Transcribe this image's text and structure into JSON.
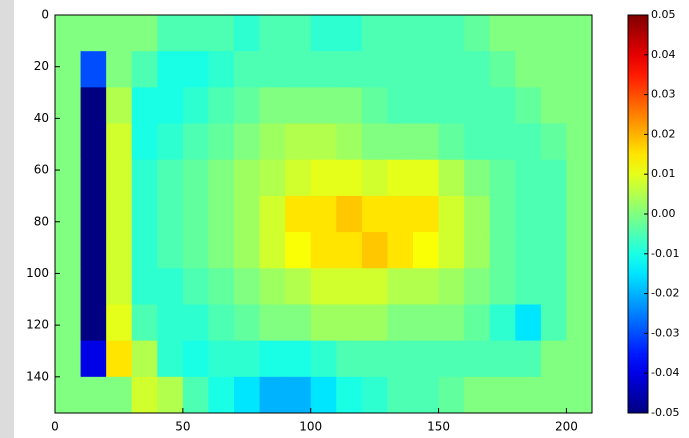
{
  "chart_data": {
    "type": "heatmap",
    "colormap": "jet",
    "xlim": [
      0,
      210
    ],
    "xticks": [
      0,
      50,
      100,
      150,
      200
    ],
    "ylim": [
      154,
      0
    ],
    "yticks": [
      0,
      20,
      40,
      60,
      80,
      100,
      120,
      140
    ],
    "clim": [
      -0.05,
      0.05
    ],
    "cticks": [
      0.05,
      0.04,
      0.03,
      0.02,
      0.01,
      {
        "value": 0,
        "label": "0.00"
      },
      -0.01,
      -0.02,
      -0.03,
      -0.04,
      -0.05
    ],
    "values": [
      [
        0,
        0,
        0,
        0,
        -0.005,
        -0.005,
        -0.005,
        -0.008,
        -0.005,
        -0.005,
        -0.008,
        -0.008,
        -0.005,
        -0.005,
        -0.005,
        -0.005,
        -0.003,
        0,
        0,
        0,
        0
      ],
      [
        0,
        -0.03,
        0,
        -0.005,
        -0.01,
        -0.01,
        -0.008,
        -0.005,
        -0.005,
        -0.005,
        -0.005,
        -0.005,
        -0.005,
        -0.005,
        -0.005,
        -0.005,
        -0.005,
        -0.003,
        0,
        0,
        0
      ],
      [
        0,
        -0.05,
        0.005,
        -0.01,
        -0.01,
        -0.008,
        -0.005,
        -0.003,
        0,
        0,
        0,
        0,
        -0.003,
        -0.005,
        -0.005,
        -0.005,
        -0.005,
        -0.005,
        -0.003,
        0,
        0
      ],
      [
        0,
        -0.05,
        0.008,
        -0.01,
        -0.008,
        -0.005,
        -0.003,
        0,
        0.003,
        0.005,
        0.005,
        0.003,
        0,
        0,
        0,
        -0.003,
        -0.005,
        -0.005,
        -0.005,
        -0.003,
        0
      ],
      [
        0,
        -0.05,
        0.008,
        -0.008,
        -0.005,
        -0.003,
        0,
        0.003,
        0.005,
        0.008,
        0.01,
        0.01,
        0.008,
        0.01,
        0.01,
        0.005,
        0,
        -0.003,
        -0.005,
        -0.005,
        0
      ],
      [
        0,
        -0.05,
        0.008,
        -0.008,
        -0.005,
        -0.003,
        0,
        0.003,
        0.008,
        0.015,
        0.015,
        0.018,
        0.015,
        0.015,
        0.015,
        0.008,
        0.003,
        -0.003,
        -0.005,
        -0.005,
        0
      ],
      [
        0,
        -0.05,
        0.008,
        -0.008,
        -0.005,
        -0.003,
        0,
        0.003,
        0.008,
        0.012,
        0.015,
        0.015,
        0.018,
        0.015,
        0.012,
        0.008,
        0.003,
        -0.003,
        -0.005,
        -0.005,
        0
      ],
      [
        0,
        -0.05,
        0.008,
        -0.008,
        -0.008,
        -0.005,
        -0.003,
        0,
        0.003,
        0.005,
        0.008,
        0.008,
        0.008,
        0.005,
        0.005,
        0.003,
        0,
        -0.003,
        -0.005,
        -0.005,
        0
      ],
      [
        0,
        -0.05,
        0.01,
        -0.005,
        -0.008,
        -0.008,
        -0.005,
        -0.003,
        0,
        0,
        0.003,
        0.003,
        0.003,
        0,
        0,
        0,
        -0.003,
        -0.008,
        -0.015,
        -0.005,
        0
      ],
      [
        0,
        -0.04,
        0.015,
        0.005,
        -0.008,
        -0.01,
        -0.008,
        -0.008,
        -0.01,
        -0.01,
        -0.008,
        -0.005,
        -0.005,
        -0.005,
        -0.005,
        -0.005,
        -0.005,
        -0.005,
        -0.005,
        0,
        0
      ],
      [
        0,
        0,
        0,
        0.008,
        0.005,
        -0.005,
        -0.01,
        -0.015,
        -0.02,
        -0.02,
        -0.015,
        -0.01,
        -0.008,
        -0.005,
        -0.005,
        -0.003,
        0,
        0,
        0,
        0,
        0
      ]
    ]
  }
}
